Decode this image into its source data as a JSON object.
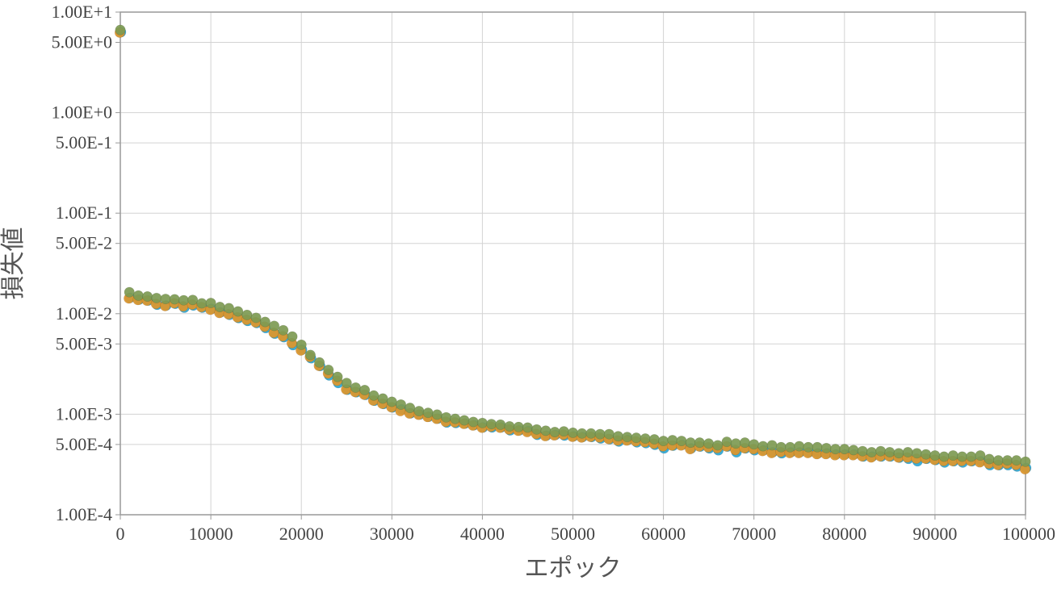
{
  "chart_data": {
    "type": "scatter",
    "title": "",
    "xlabel": "エポック",
    "ylabel": "損失値",
    "xlim": [
      0,
      100000
    ],
    "ylim": [
      0.0001,
      10
    ],
    "yscale": "log",
    "grid": true,
    "legend": "none",
    "x_ticks": [
      "0",
      "10000",
      "20000",
      "30000",
      "40000",
      "50000",
      "60000",
      "70000",
      "80000",
      "90000",
      "100000"
    ],
    "y_ticks": [
      {
        "value": 10,
        "label": "1.00E+1"
      },
      {
        "value": 5,
        "label": "5.00E+0"
      },
      {
        "value": 1,
        "label": "1.00E+0"
      },
      {
        "value": 0.5,
        "label": "5.00E-1"
      },
      {
        "value": 0.1,
        "label": "1.00E-1"
      },
      {
        "value": 0.05,
        "label": "5.00E-2"
      },
      {
        "value": 0.01,
        "label": "1.00E-2"
      },
      {
        "value": 0.005,
        "label": "5.00E-3"
      },
      {
        "value": 0.001,
        "label": "1.00E-3"
      },
      {
        "value": 0.0005,
        "label": "5.00E-4"
      },
      {
        "value": 0.0001,
        "label": "1.00E-4"
      }
    ],
    "series": [
      {
        "color": "#2aa7d6",
        "x": [
          0,
          1000,
          2000,
          3000,
          4000,
          5000,
          6000,
          7000,
          8000,
          9000,
          10000,
          11000,
          12000,
          13000,
          14000,
          15000,
          16000,
          17000,
          18000,
          19000,
          20000,
          21000,
          22000,
          23000,
          24000,
          25000,
          26000,
          27000,
          28000,
          29000,
          30000,
          31000,
          32000,
          33000,
          34000,
          35000,
          36000,
          37000,
          38000,
          39000,
          40000,
          41000,
          42000,
          43000,
          44000,
          45000,
          46000,
          47000,
          48000,
          49000,
          50000,
          51000,
          52000,
          53000,
          54000,
          55000,
          56000,
          57000,
          58000,
          59000,
          60000,
          61000,
          62000,
          63000,
          64000,
          65000,
          66000,
          67000,
          68000,
          69000,
          70000,
          71000,
          72000,
          73000,
          74000,
          75000,
          76000,
          77000,
          78000,
          79000,
          80000,
          81000,
          82000,
          83000,
          84000,
          85000,
          86000,
          87000,
          88000,
          89000,
          90000,
          91000,
          92000,
          93000,
          94000,
          95000,
          96000,
          97000,
          98000,
          99000,
          100000
        ],
        "y": [
          6.5,
          0.0148,
          0.0142,
          0.0139,
          0.0126,
          0.0124,
          0.0129,
          0.0118,
          0.0124,
          0.0118,
          0.0115,
          0.0106,
          0.01,
          0.0093,
          0.0087,
          0.0083,
          0.0074,
          0.0065,
          0.006,
          0.005,
          0.0045,
          0.0037,
          0.0031,
          0.0025,
          0.0021,
          0.0018,
          0.0017,
          0.0016,
          0.0014,
          0.0013,
          0.0012,
          0.00115,
          0.00105,
          0.00102,
          0.00097,
          0.00093,
          0.00085,
          0.00084,
          0.00083,
          0.0008,
          0.00076,
          0.00076,
          0.00076,
          0.00071,
          0.00071,
          0.0007,
          0.00064,
          0.00063,
          0.00064,
          0.00063,
          0.00062,
          0.00061,
          0.00061,
          0.00059,
          0.00058,
          0.00055,
          0.00057,
          0.00054,
          0.00053,
          0.00051,
          0.00047,
          0.0005,
          0.00051,
          0.00047,
          0.00049,
          0.00047,
          0.00045,
          0.00049,
          0.00043,
          0.00047,
          0.00045,
          0.00045,
          0.00043,
          0.00042,
          0.00043,
          0.00043,
          0.00043,
          0.00042,
          0.00042,
          0.00041,
          0.00041,
          0.00041,
          0.00039,
          0.00039,
          0.00039,
          0.00039,
          0.00038,
          0.00037,
          0.00035,
          0.00037,
          0.00036,
          0.00034,
          0.00035,
          0.00034,
          0.00035,
          0.00035,
          0.00032,
          0.00032,
          0.00032,
          0.00031,
          0.0003
        ]
      },
      {
        "color": "#e0962a",
        "x": [
          0,
          1000,
          2000,
          3000,
          4000,
          5000,
          6000,
          7000,
          8000,
          9000,
          10000,
          11000,
          12000,
          13000,
          14000,
          15000,
          16000,
          17000,
          18000,
          19000,
          20000,
          21000,
          22000,
          23000,
          24000,
          25000,
          26000,
          27000,
          28000,
          29000,
          30000,
          31000,
          32000,
          33000,
          34000,
          35000,
          36000,
          37000,
          38000,
          39000,
          40000,
          41000,
          42000,
          43000,
          44000,
          45000,
          46000,
          47000,
          48000,
          49000,
          50000,
          51000,
          52000,
          53000,
          54000,
          55000,
          56000,
          57000,
          58000,
          59000,
          60000,
          61000,
          62000,
          63000,
          64000,
          65000,
          66000,
          67000,
          68000,
          69000,
          70000,
          71000,
          72000,
          73000,
          74000,
          75000,
          76000,
          77000,
          78000,
          79000,
          80000,
          81000,
          82000,
          83000,
          84000,
          85000,
          86000,
          87000,
          88000,
          89000,
          90000,
          91000,
          92000,
          93000,
          94000,
          95000,
          96000,
          97000,
          98000,
          99000,
          100000
        ],
        "y": [
          6.4,
          0.0145,
          0.014,
          0.0138,
          0.0128,
          0.0122,
          0.013,
          0.0121,
          0.0126,
          0.0119,
          0.0112,
          0.0104,
          0.0101,
          0.0094,
          0.0089,
          0.0084,
          0.0076,
          0.0066,
          0.0061,
          0.0052,
          0.0044,
          0.0038,
          0.0031,
          0.0026,
          0.0022,
          0.0018,
          0.0017,
          0.0016,
          0.0014,
          0.0013,
          0.0012,
          0.0011,
          0.00104,
          0.00101,
          0.00096,
          0.00092,
          0.00086,
          0.00085,
          0.00082,
          0.00079,
          0.00075,
          0.00077,
          0.00075,
          0.00072,
          0.0007,
          0.00068,
          0.00065,
          0.00062,
          0.00063,
          0.00064,
          0.00061,
          0.0006,
          0.00061,
          0.0006,
          0.00058,
          0.00056,
          0.00056,
          0.00055,
          0.00054,
          0.00052,
          0.00049,
          0.0005,
          0.0005,
          0.00046,
          0.00049,
          0.00048,
          0.00047,
          0.00049,
          0.00045,
          0.00047,
          0.00046,
          0.00044,
          0.00042,
          0.00043,
          0.00042,
          0.00042,
          0.00042,
          0.00041,
          0.00041,
          0.0004,
          0.0004,
          0.0004,
          0.00039,
          0.00038,
          0.00039,
          0.00039,
          0.00038,
          0.00038,
          0.00037,
          0.00037,
          0.00036,
          0.00035,
          0.00035,
          0.00035,
          0.00035,
          0.00034,
          0.00033,
          0.00032,
          0.00033,
          0.00032,
          0.00029
        ]
      },
      {
        "color": "#7d9a52",
        "x": [
          0,
          1000,
          2000,
          3000,
          4000,
          5000,
          6000,
          7000,
          8000,
          9000,
          10000,
          11000,
          12000,
          13000,
          14000,
          15000,
          16000,
          17000,
          18000,
          19000,
          20000,
          21000,
          22000,
          23000,
          24000,
          25000,
          26000,
          27000,
          28000,
          29000,
          30000,
          31000,
          32000,
          33000,
          34000,
          35000,
          36000,
          37000,
          38000,
          39000,
          40000,
          41000,
          42000,
          43000,
          44000,
          45000,
          46000,
          47000,
          48000,
          49000,
          50000,
          51000,
          52000,
          53000,
          54000,
          55000,
          56000,
          57000,
          58000,
          59000,
          60000,
          61000,
          62000,
          63000,
          64000,
          65000,
          66000,
          67000,
          68000,
          69000,
          70000,
          71000,
          72000,
          73000,
          74000,
          75000,
          76000,
          77000,
          78000,
          79000,
          80000,
          81000,
          82000,
          83000,
          84000,
          85000,
          86000,
          87000,
          88000,
          89000,
          90000,
          91000,
          92000,
          93000,
          94000,
          95000,
          96000,
          97000,
          98000,
          99000,
          100000
        ],
        "y": [
          6.5,
          0.016,
          0.0148,
          0.0145,
          0.014,
          0.0137,
          0.0136,
          0.0133,
          0.0134,
          0.0124,
          0.0125,
          0.0114,
          0.0111,
          0.0103,
          0.0095,
          0.0089,
          0.0081,
          0.0074,
          0.0067,
          0.0058,
          0.0048,
          0.0038,
          0.0032,
          0.0027,
          0.0023,
          0.002,
          0.0018,
          0.0017,
          0.0015,
          0.0014,
          0.0013,
          0.00122,
          0.00113,
          0.00105,
          0.00101,
          0.00097,
          0.00091,
          0.00088,
          0.00085,
          0.00082,
          0.0008,
          0.00078,
          0.00077,
          0.00074,
          0.00073,
          0.00072,
          0.00069,
          0.00067,
          0.00065,
          0.00066,
          0.00064,
          0.00063,
          0.00063,
          0.00062,
          0.00062,
          0.00059,
          0.00058,
          0.00057,
          0.00056,
          0.00055,
          0.00053,
          0.00054,
          0.00053,
          0.00051,
          0.00051,
          0.0005,
          0.00048,
          0.00052,
          0.0005,
          0.00051,
          0.00049,
          0.00047,
          0.00048,
          0.00046,
          0.00046,
          0.00047,
          0.00046,
          0.00046,
          0.00045,
          0.00044,
          0.00044,
          0.00043,
          0.00042,
          0.00041,
          0.00042,
          0.00041,
          0.0004,
          0.00041,
          0.0004,
          0.00039,
          0.00038,
          0.00037,
          0.00038,
          0.00037,
          0.00037,
          0.00038,
          0.00035,
          0.00034,
          0.00034,
          0.00034,
          0.00033
        ]
      }
    ]
  }
}
